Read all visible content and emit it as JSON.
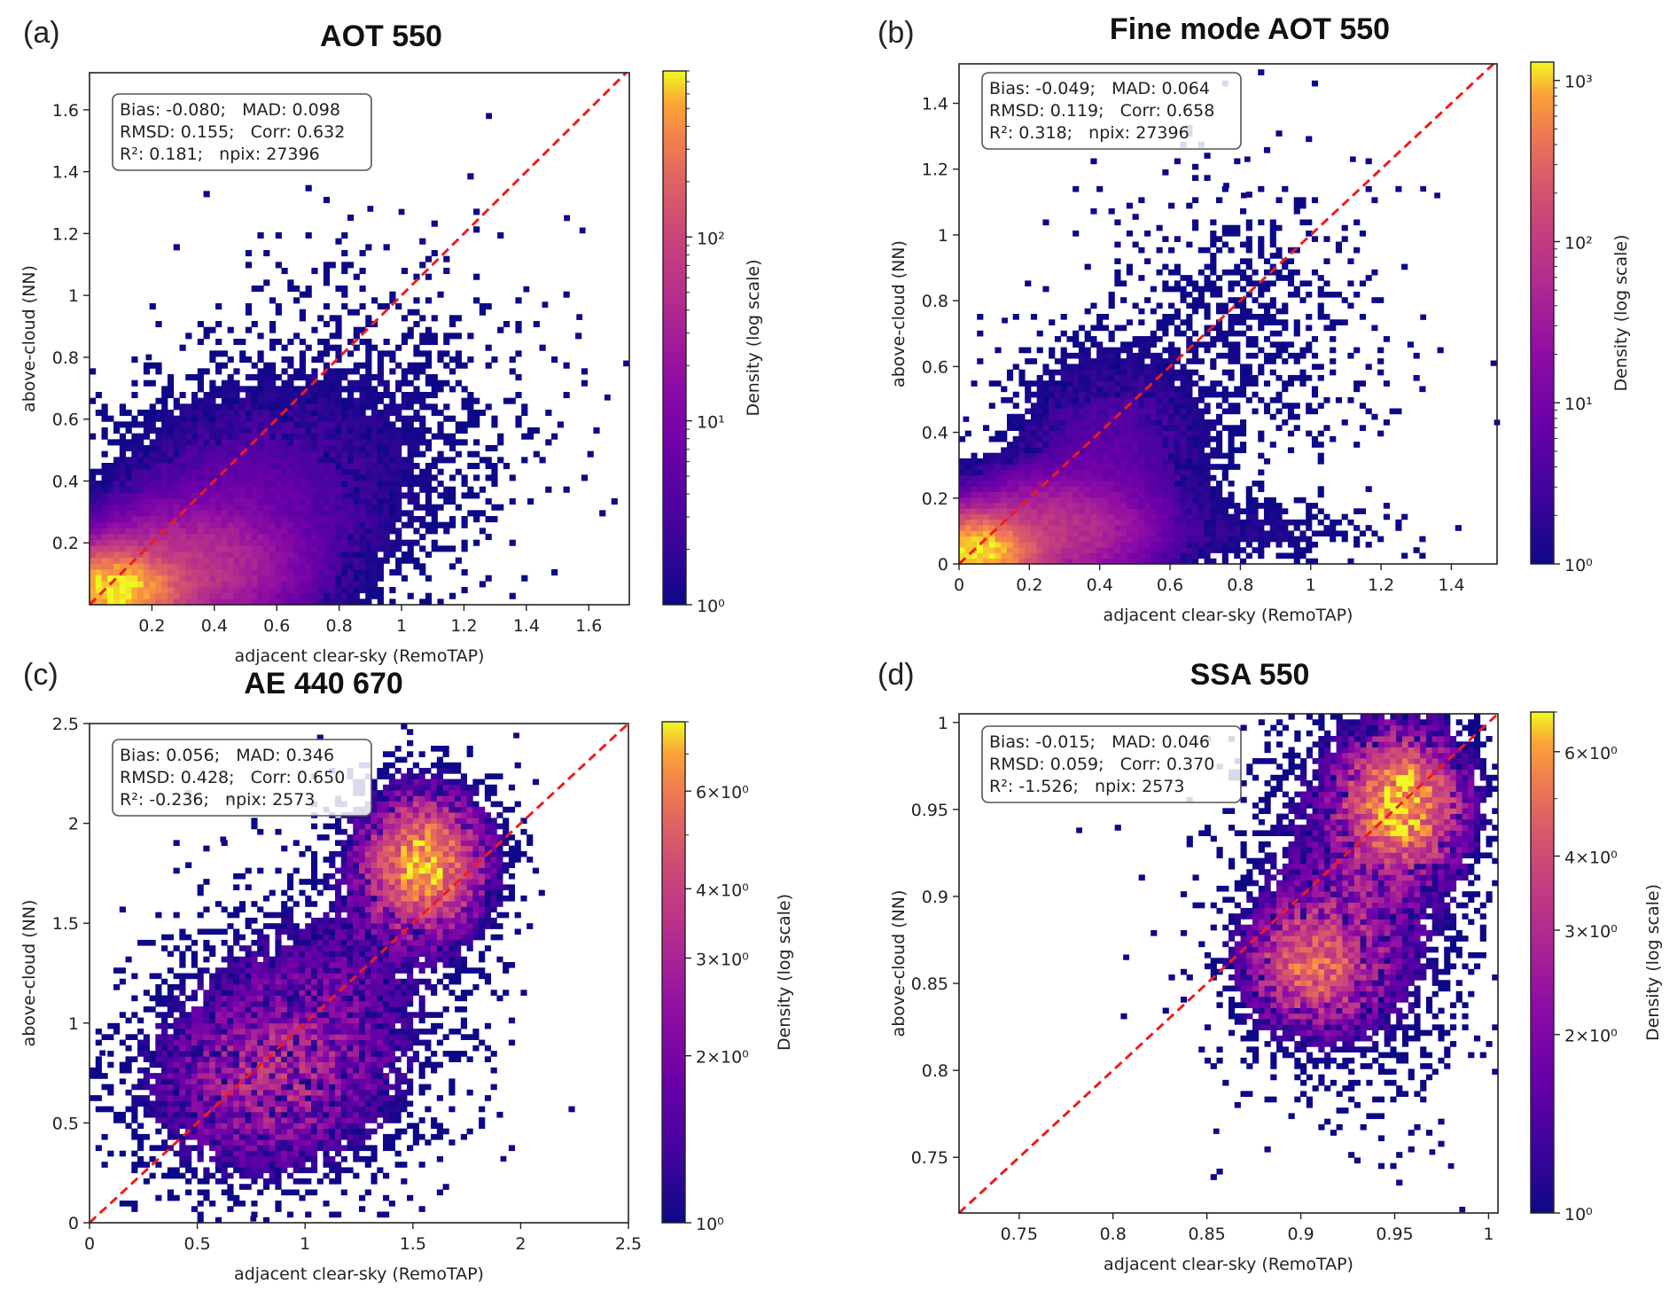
{
  "chart_data": [
    {
      "type": "heatmap",
      "panel_label": "(a)",
      "title": "AOT 550",
      "xlabel": "adjacent clear-sky (RemoTAP)",
      "ylabel": "above-cloud (NN)",
      "xlim": [
        0.0,
        1.73
      ],
      "ylim": [
        0.0,
        1.72
      ],
      "xticks": [
        0.2,
        0.4,
        0.6,
        0.8,
        1.0,
        1.2,
        1.4,
        1.6
      ],
      "xtick_labels": [
        "0.2",
        "0.4",
        "0.6",
        "0.8",
        "1",
        "1.2",
        "1.4",
        "1.6"
      ],
      "yticks": [
        0.2,
        0.4,
        0.6,
        0.8,
        1.0,
        1.2,
        1.4,
        1.6
      ],
      "ytick_labels": [
        "0.2",
        "0.4",
        "0.6",
        "0.8",
        "1",
        "1.2",
        "1.4",
        "1.6"
      ],
      "bins": 90,
      "one_to_one_line": true,
      "stats": [
        "Bias: -0.080;   MAD: 0.098",
        "RMSD: 0.155;   Corr: 0.632",
        "R²: 0.181;   npix: 27396"
      ],
      "colorbar": {
        "label": "Density (log scale)",
        "scale": "log",
        "min": 1,
        "max": 800,
        "ticks": [
          1,
          10,
          100
        ],
        "tick_labels": [
          "10⁰",
          "10¹",
          "10²"
        ]
      },
      "distribution": {
        "clusters": [
          {
            "cx": 0.08,
            "cy": 0.05,
            "sx": 0.1,
            "sy": 0.06,
            "peak": 800
          },
          {
            "cx": 0.3,
            "cy": 0.12,
            "sx": 0.18,
            "sy": 0.1,
            "peak": 60
          },
          {
            "cx": 0.5,
            "cy": 0.3,
            "sx": 0.22,
            "sy": 0.18,
            "peak": 6
          },
          {
            "cx": 0.85,
            "cy": 0.55,
            "sx": 0.3,
            "sy": 0.28,
            "peak": 0.9
          }
        ],
        "outliers": [
          [
            1.28,
            1.58
          ],
          [
            0.9,
            1.28
          ],
          [
            1.0,
            1.27
          ],
          [
            1.53,
            1.25
          ],
          [
            1.58,
            1.21
          ],
          [
            0.19,
            0.8
          ],
          [
            1.72,
            0.78
          ],
          [
            1.66,
            0.67
          ],
          [
            1.4,
            1.02
          ],
          [
            1.46,
            0.97
          ],
          [
            1.57,
            0.93
          ]
        ]
      }
    },
    {
      "type": "heatmap",
      "panel_label": "(b)",
      "title": "Fine mode AOT 550",
      "xlabel": "adjacent clear-sky (RemoTAP)",
      "ylabel": "above-cloud (NN)",
      "xlim": [
        0.0,
        1.53
      ],
      "ylim": [
        0.0,
        1.52
      ],
      "xticks": [
        0,
        0.2,
        0.4,
        0.6,
        0.8,
        1.0,
        1.2,
        1.4
      ],
      "xtick_labels": [
        "0",
        "0.2",
        "0.4",
        "0.6",
        "0.8",
        "1",
        "1.2",
        "1.4"
      ],
      "yticks": [
        0,
        0.2,
        0.4,
        0.6,
        0.8,
        1.0,
        1.2,
        1.4
      ],
      "ytick_labels": [
        "0",
        "0.2",
        "0.4",
        "0.6",
        "0.8",
        "1",
        "1.2",
        "1.4"
      ],
      "bins": 90,
      "one_to_one_line": true,
      "stats": [
        "Bias: -0.049;   MAD: 0.064",
        "RMSD: 0.119;   Corr: 0.658",
        "R²: 0.318;   npix: 27396"
      ],
      "colorbar": {
        "label": "Density (log scale)",
        "scale": "log",
        "min": 1,
        "max": 1300,
        "ticks": [
          1,
          10,
          100,
          1000
        ],
        "tick_labels": [
          "10⁰",
          "10¹",
          "10²",
          "10³"
        ]
      },
      "distribution": {
        "clusters": [
          {
            "cx": 0.05,
            "cy": 0.04,
            "sx": 0.08,
            "sy": 0.05,
            "peak": 1300
          },
          {
            "cx": 0.25,
            "cy": 0.1,
            "sx": 0.14,
            "sy": 0.08,
            "peak": 80
          },
          {
            "cx": 0.42,
            "cy": 0.28,
            "sx": 0.14,
            "sy": 0.18,
            "peak": 6
          },
          {
            "cx": 0.75,
            "cy": 0.1,
            "sx": 0.25,
            "sy": 0.06,
            "peak": 1.2
          },
          {
            "cx": 0.8,
            "cy": 0.7,
            "sx": 0.22,
            "sy": 0.25,
            "peak": 0.6
          }
        ],
        "outliers": [
          [
            0.82,
            1.23
          ],
          [
            1.12,
            1.23
          ],
          [
            0.76,
            1.15
          ],
          [
            0.81,
            1.12
          ],
          [
            1.32,
            1.14
          ],
          [
            1.36,
            1.12
          ],
          [
            0.13,
            0.74
          ],
          [
            1.32,
            0.75
          ],
          [
            1.52,
            0.61
          ],
          [
            1.53,
            0.43
          ],
          [
            0.02,
            0.44
          ]
        ]
      }
    },
    {
      "type": "heatmap",
      "panel_label": "(c)",
      "title": "AE 440 670",
      "xlabel": "adjacent clear-sky (RemoTAP)",
      "ylabel": "above-cloud (NN)",
      "xlim": [
        0.0,
        2.5
      ],
      "ylim": [
        0.0,
        2.5
      ],
      "xticks": [
        0,
        0.5,
        1.0,
        1.5,
        2.0,
        2.5
      ],
      "xtick_labels": [
        "0",
        "0.5",
        "1",
        "1.5",
        "2",
        "2.5"
      ],
      "yticks": [
        0,
        0.5,
        1.0,
        1.5,
        2.0,
        2.5
      ],
      "ytick_labels": [
        "0",
        "0.5",
        "1",
        "1.5",
        "2",
        "2.5"
      ],
      "bins": 90,
      "one_to_one_line": true,
      "stats": [
        "Bias: 0.056;   MAD: 0.346",
        "RMSD: 0.428;   Corr: 0.650",
        "R²: -0.236;   npix: 2573"
      ],
      "colorbar": {
        "label": "Density (log scale)",
        "scale": "log",
        "min": 1,
        "max": 8,
        "ticks": [
          1,
          2,
          3,
          4,
          6
        ],
        "tick_labels": [
          "10⁰",
          "2×10⁰",
          "3×10⁰",
          "4×10⁰",
          "6×10⁰"
        ]
      },
      "distribution": {
        "clusters": [
          {
            "cx": 1.55,
            "cy": 1.8,
            "sx": 0.18,
            "sy": 0.22,
            "peak": 7
          },
          {
            "cx": 0.8,
            "cy": 0.7,
            "sx": 0.35,
            "sy": 0.3,
            "peak": 2.5
          },
          {
            "cx": 1.1,
            "cy": 1.15,
            "sx": 0.35,
            "sy": 0.35,
            "peak": 1.2
          }
        ],
        "outliers": [
          [
            1.98,
            2.44
          ],
          [
            0.62,
            1.92
          ],
          [
            1.92,
            0.32
          ],
          [
            0.76,
            0.02
          ],
          [
            0.06,
            0.85
          ]
        ]
      }
    },
    {
      "type": "heatmap",
      "panel_label": "(d)",
      "title": "SSA 550",
      "xlabel": "adjacent clear-sky (RemoTAP)",
      "ylabel": "above-cloud (NN)",
      "xlim": [
        0.718,
        1.005
      ],
      "ylim": [
        0.718,
        1.005
      ],
      "xticks": [
        0.75,
        0.8,
        0.85,
        0.9,
        0.95,
        1.0
      ],
      "xtick_labels": [
        "0.75",
        "0.8",
        "0.85",
        "0.9",
        "0.95",
        "1"
      ],
      "yticks": [
        0.75,
        0.8,
        0.85,
        0.9,
        0.95,
        1.0
      ],
      "ytick_labels": [
        "0.75",
        "0.8",
        "0.85",
        "0.9",
        "0.95",
        "1"
      ],
      "bins": 90,
      "one_to_one_line": true,
      "stats": [
        "Bias: -0.015;   MAD: 0.046",
        "RMSD: 0.059;   Corr: 0.370",
        "R²: -1.526;   npix: 2573"
      ],
      "colorbar": {
        "label": "Density (log scale)",
        "scale": "log",
        "min": 1,
        "max": 7,
        "ticks": [
          1,
          2,
          3,
          4,
          6
        ],
        "tick_labels": [
          "10⁰",
          "2×10⁰",
          "3×10⁰",
          "4×10⁰",
          "6×10⁰"
        ]
      },
      "distribution": {
        "clusters": [
          {
            "cx": 0.955,
            "cy": 0.955,
            "sx": 0.02,
            "sy": 0.025,
            "peak": 6
          },
          {
            "cx": 0.905,
            "cy": 0.86,
            "sx": 0.022,
            "sy": 0.022,
            "peak": 4
          },
          {
            "cx": 0.93,
            "cy": 0.9,
            "sx": 0.035,
            "sy": 0.06,
            "peak": 1.5
          }
        ],
        "outliers": [
          [
            0.782,
            0.938
          ],
          [
            0.807,
            0.865
          ],
          [
            0.855,
            0.765
          ],
          [
            0.97,
            0.753
          ],
          [
            0.98,
            0.745
          ],
          [
            0.986,
            0.72
          ]
        ]
      }
    }
  ]
}
